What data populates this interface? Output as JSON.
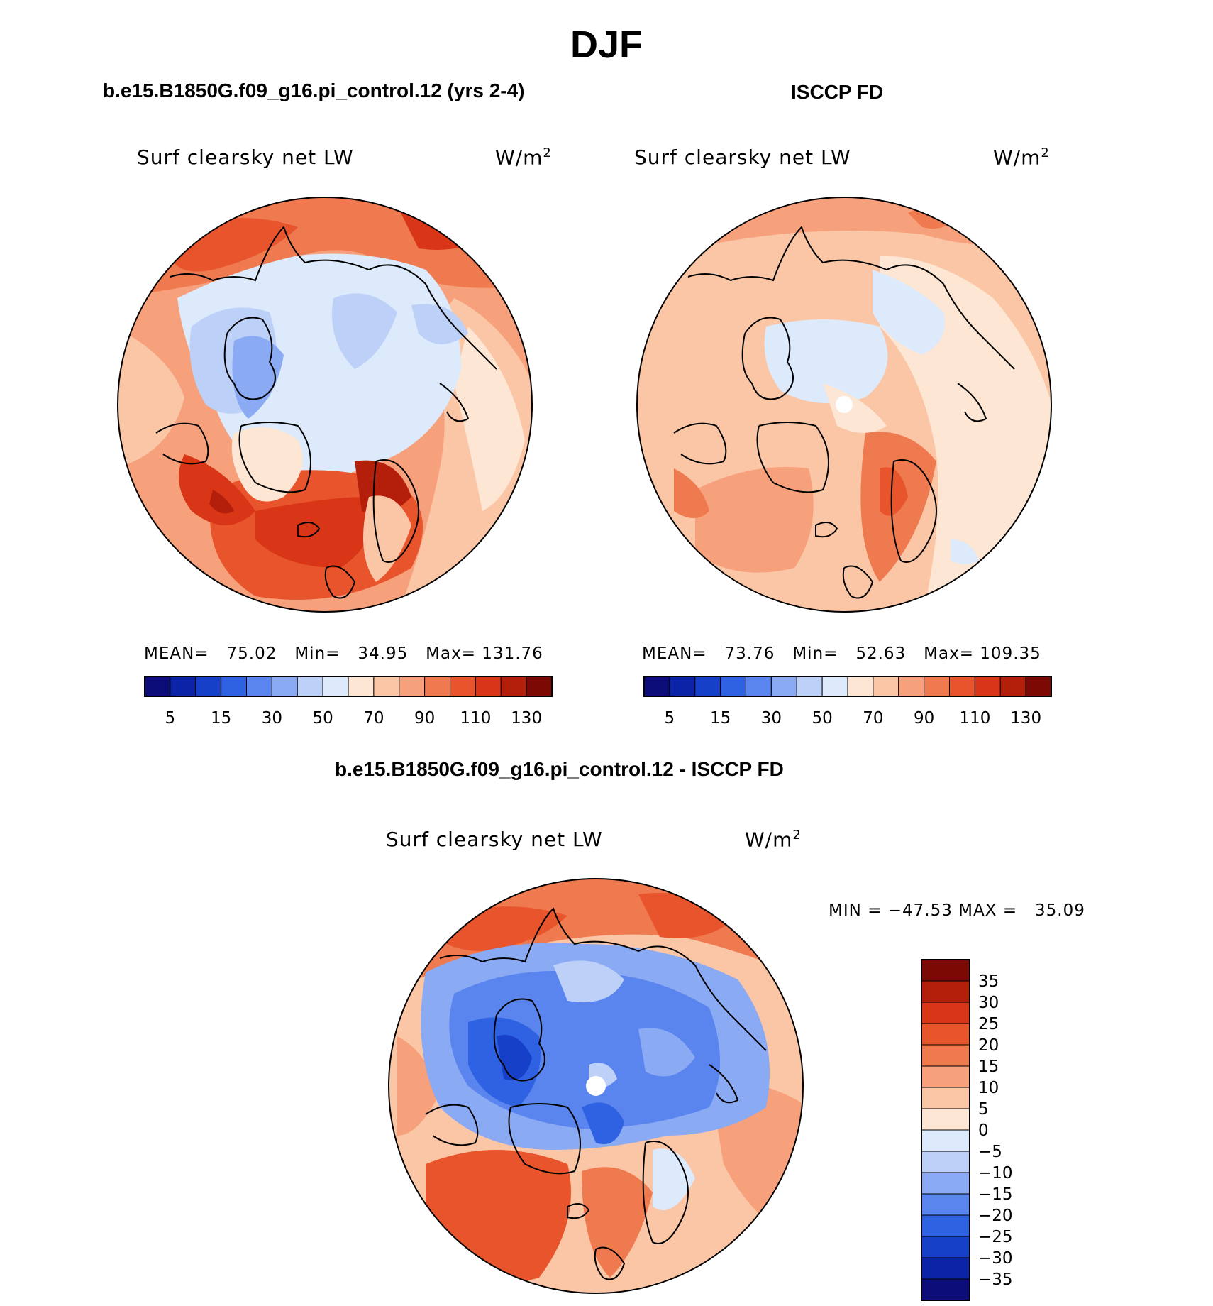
{
  "main_title": "DJF",
  "panels": [
    {
      "title": "b.e15.B1850G.f09_g16.pi_control.12 (yrs 2-4)",
      "variable": "Surf clearsky net LW",
      "units": "W/m",
      "units_sup": "2",
      "stats": {
        "mean_label": "MEAN=",
        "mean": "75.02",
        "min_label": "Min=",
        "min": "34.95",
        "max_label": "Max=",
        "max": "131.76"
      }
    },
    {
      "title": "ISCCP FD",
      "variable": "Surf clearsky net LW",
      "units": "W/m",
      "units_sup": "2",
      "stats": {
        "mean_label": "MEAN=",
        "mean": "73.76",
        "min_label": "Min=",
        "min": "52.63",
        "max_label": "Max=",
        "max": "109.35"
      }
    },
    {
      "title": "b.e15.B1850G.f09_g16.pi_control.12 - ISCCP FD",
      "variable": "Surf clearsky net LW",
      "units": "W/m",
      "units_sup": "2",
      "stats": {
        "min_label": "MIN =",
        "min": "−47.53",
        "max_label": "MAX =",
        "max": "35.09"
      }
    }
  ],
  "chart_data": [
    {
      "type": "heatmap",
      "projection": "north-polar-stereographic",
      "season": "DJF",
      "title": "b.e15.B1850G.f09_g16.pi_control.12 (yrs 2-4)",
      "variable": "Surf clearsky net LW",
      "units": "W/m2",
      "mean": 75.02,
      "min": 34.95,
      "max": 131.76,
      "colorbar": {
        "orientation": "horizontal",
        "tick_labels": [
          "5",
          "15",
          "30",
          "50",
          "70",
          "90",
          "110",
          "130"
        ],
        "colors": [
          "#0d0d7a",
          "#0b23a6",
          "#1640c8",
          "#2f62e2",
          "#5a84ee",
          "#8aaaf4",
          "#bcd0f8",
          "#dceafb",
          "#fde6d3",
          "#fbc6a6",
          "#f7a07c",
          "#f07a50",
          "#e8542c",
          "#d83616",
          "#b41f0c",
          "#7c0a04"
        ]
      }
    },
    {
      "type": "heatmap",
      "projection": "north-polar-stereographic",
      "season": "DJF",
      "title": "ISCCP FD",
      "variable": "Surf clearsky net LW",
      "units": "W/m2",
      "mean": 73.76,
      "min": 52.63,
      "max": 109.35,
      "colorbar": {
        "orientation": "horizontal",
        "tick_labels": [
          "5",
          "15",
          "30",
          "50",
          "70",
          "90",
          "110",
          "130"
        ],
        "colors": [
          "#0d0d7a",
          "#0b23a6",
          "#1640c8",
          "#2f62e2",
          "#5a84ee",
          "#8aaaf4",
          "#bcd0f8",
          "#dceafb",
          "#fde6d3",
          "#fbc6a6",
          "#f7a07c",
          "#f07a50",
          "#e8542c",
          "#d83616",
          "#b41f0c",
          "#7c0a04"
        ]
      }
    },
    {
      "type": "heatmap",
      "projection": "north-polar-stereographic",
      "season": "DJF",
      "title": "b.e15.B1850G.f09_g16.pi_control.12 - ISCCP FD",
      "variable": "Surf clearsky net LW",
      "units": "W/m2",
      "min": -47.53,
      "max": 35.09,
      "colorbar": {
        "orientation": "vertical",
        "tick_labels": [
          "35",
          "30",
          "25",
          "20",
          "15",
          "10",
          "5",
          "0",
          "−5",
          "−10",
          "−15",
          "−20",
          "−25",
          "−30",
          "−35"
        ],
        "colors": [
          "#7c0a04",
          "#b41f0c",
          "#d83616",
          "#e8542c",
          "#f07a50",
          "#f7a07c",
          "#fbc6a6",
          "#fde6d3",
          "#dceafb",
          "#bcd0f8",
          "#8aaaf4",
          "#5a84ee",
          "#2f62e2",
          "#1640c8",
          "#0b23a6",
          "#0d0d7a"
        ]
      }
    }
  ]
}
